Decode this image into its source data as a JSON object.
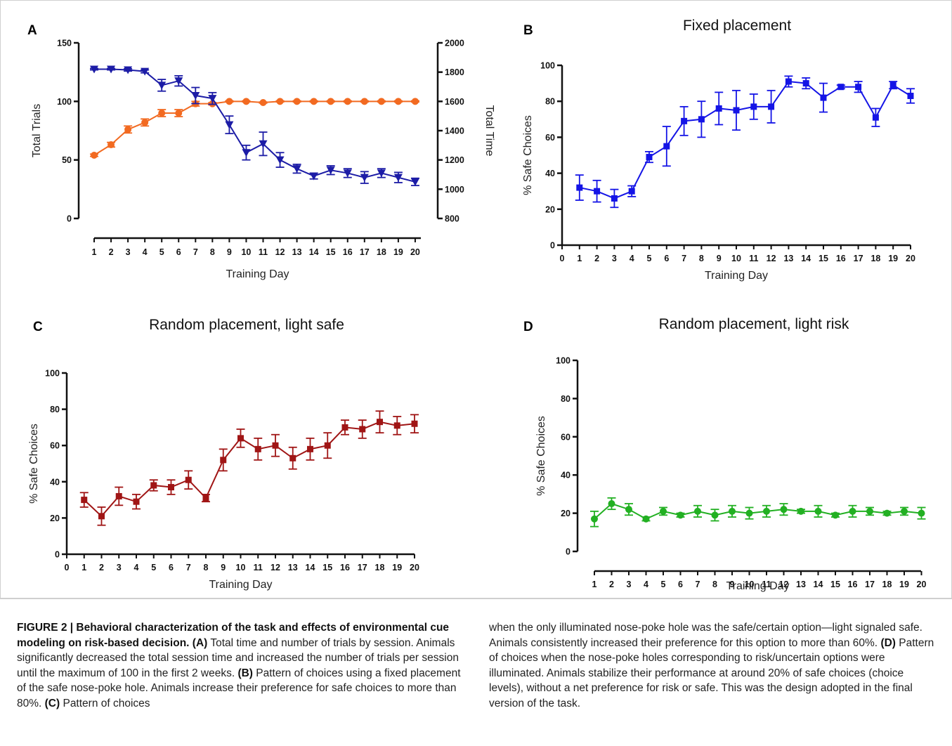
{
  "chart_data": [
    {
      "panel": "A",
      "type": "line",
      "title": "",
      "xlabel": "Training Day",
      "ylabel": "Total Trials",
      "y2label": "Total Time",
      "x": [
        1,
        2,
        3,
        4,
        5,
        6,
        7,
        8,
        9,
        10,
        11,
        12,
        13,
        14,
        15,
        16,
        17,
        18,
        19,
        20
      ],
      "xticks": [
        1,
        2,
        3,
        4,
        5,
        6,
        7,
        8,
        9,
        10,
        11,
        12,
        13,
        14,
        15,
        16,
        17,
        18,
        19,
        20
      ],
      "ylim": [
        0,
        150
      ],
      "yticks": [
        0,
        50,
        100,
        150
      ],
      "y2lim": [
        800,
        2000
      ],
      "y2ticks": [
        800,
        1000,
        1200,
        1400,
        1600,
        1800,
        2000
      ],
      "series": [
        {
          "name": "Total Trials",
          "axis": "left",
          "color": "#f26a21",
          "marker": "circle",
          "values": [
            54,
            63,
            76,
            82,
            90,
            90,
            98,
            98,
            100,
            100,
            99,
            100,
            100,
            100,
            100,
            100,
            100,
            100,
            100,
            100
          ],
          "errors": [
            1,
            2,
            3,
            3,
            3,
            3,
            2,
            1,
            0.5,
            0.5,
            0.5,
            0.5,
            0.5,
            0.5,
            0.5,
            0.5,
            0.5,
            0.5,
            0.5,
            0.5
          ]
        },
        {
          "name": "Total Time",
          "axis": "right",
          "color": "#1c1ca6",
          "marker": "triangle-down",
          "values": [
            1820,
            1820,
            1815,
            1805,
            1710,
            1740,
            1640,
            1620,
            1440,
            1250,
            1310,
            1200,
            1140,
            1090,
            1130,
            1110,
            1080,
            1110,
            1080,
            1050
          ],
          "errors": [
            5,
            5,
            8,
            10,
            40,
            35,
            55,
            40,
            60,
            50,
            80,
            50,
            30,
            20,
            30,
            30,
            40,
            30,
            35,
            25
          ]
        }
      ]
    },
    {
      "panel": "B",
      "type": "line",
      "title": "Fixed placement",
      "xlabel": "Training Day",
      "ylabel": "% Safe Choices",
      "x": [
        1,
        2,
        3,
        4,
        5,
        6,
        7,
        8,
        9,
        10,
        11,
        12,
        13,
        14,
        15,
        16,
        17,
        18,
        19,
        20
      ],
      "xticks": [
        0,
        1,
        2,
        3,
        4,
        5,
        6,
        7,
        8,
        9,
        10,
        11,
        12,
        13,
        14,
        15,
        16,
        17,
        18,
        19,
        20
      ],
      "xlim": [
        0,
        20
      ],
      "ylim": [
        0,
        100
      ],
      "yticks": [
        0,
        20,
        40,
        60,
        80,
        100
      ],
      "series": [
        {
          "color": "#1414e6",
          "marker": "square",
          "values": [
            32,
            30,
            26,
            30,
            49,
            55,
            69,
            70,
            76,
            75,
            77,
            77,
            91,
            90,
            82,
            88,
            88,
            71,
            89,
            83
          ],
          "errors": [
            7,
            6,
            5,
            3,
            3,
            11,
            8,
            10,
            9,
            11,
            7,
            9,
            3,
            3,
            8,
            1,
            3,
            5,
            2,
            4
          ]
        }
      ]
    },
    {
      "panel": "C",
      "type": "line",
      "title": "Random placement, light safe",
      "xlabel": "Training Day",
      "ylabel": "% Safe Choices",
      "x": [
        1,
        2,
        3,
        4,
        5,
        6,
        7,
        8,
        9,
        10,
        11,
        12,
        13,
        14,
        15,
        16,
        17,
        18,
        19,
        20
      ],
      "xticks": [
        0,
        1,
        2,
        3,
        4,
        5,
        6,
        7,
        8,
        9,
        10,
        11,
        12,
        13,
        14,
        15,
        16,
        17,
        18,
        19,
        20
      ],
      "xlim": [
        0,
        20
      ],
      "ylim": [
        0,
        100
      ],
      "yticks": [
        0,
        20,
        40,
        60,
        80,
        100
      ],
      "series": [
        {
          "color": "#a01515",
          "marker": "square",
          "values": [
            30,
            21,
            32,
            29,
            38,
            37,
            41,
            31,
            52,
            64,
            58,
            60,
            53,
            58,
            60,
            70,
            69,
            73,
            71,
            72
          ],
          "errors": [
            4,
            5,
            5,
            4,
            3,
            4,
            5,
            2,
            6,
            5,
            6,
            6,
            6,
            6,
            7,
            4,
            5,
            6,
            5,
            5
          ]
        }
      ]
    },
    {
      "panel": "D",
      "type": "line",
      "title": "Random placement, light risk",
      "xlabel": "Training Day",
      "ylabel": "% Safe Choices",
      "x": [
        1,
        2,
        3,
        4,
        5,
        6,
        7,
        8,
        9,
        10,
        11,
        12,
        13,
        14,
        15,
        16,
        17,
        18,
        19,
        20
      ],
      "xticks": [
        1,
        2,
        3,
        4,
        5,
        6,
        7,
        8,
        9,
        10,
        11,
        12,
        13,
        14,
        15,
        16,
        17,
        18,
        19,
        20
      ],
      "ylim": [
        0,
        100
      ],
      "yticks": [
        0,
        20,
        40,
        60,
        80,
        100
      ],
      "series": [
        {
          "color": "#22b022",
          "marker": "circle",
          "values": [
            17,
            25,
            22,
            17,
            21,
            19,
            21,
            19,
            21,
            20,
            21,
            22,
            21,
            21,
            19,
            21,
            21,
            20,
            21,
            20
          ],
          "errors": [
            4,
            3,
            3,
            1,
            2,
            1,
            3,
            3,
            3,
            3,
            3,
            3,
            1,
            3,
            1,
            3,
            2,
            1,
            2,
            3
          ]
        }
      ]
    }
  ],
  "caption": {
    "left": [
      {
        "b": true,
        "t": "FIGURE 2 | Behavioral characterization of the task and effects of environmental cue modeling on risk-based decision."
      },
      {
        "b": false,
        "t": " "
      },
      {
        "b": true,
        "t": "(A)"
      },
      {
        "b": false,
        "t": " Total time and number of trials by session. Animals significantly decreased the total session time and increased the number of trials per session until the maximum of 100 in the first 2 weeks. "
      },
      {
        "b": true,
        "t": "(B)"
      },
      {
        "b": false,
        "t": " Pattern of choices using a fixed placement of the safe nose-poke hole. Animals increase their preference for safe choices to more than 80%. "
      },
      {
        "b": true,
        "t": "(C)"
      },
      {
        "b": false,
        "t": " Pattern of choices"
      }
    ],
    "right": [
      {
        "b": false,
        "t": "when the only illuminated nose-poke hole was the safe/certain option—light signaled safe. Animals consistently increased their preference for this option to more than 60%. "
      },
      {
        "b": true,
        "t": "(D)"
      },
      {
        "b": false,
        "t": " Pattern of choices when the nose-poke holes corresponding to risk/uncertain options were illuminated. Animals stabilize their performance at around 20% of safe choices (choice levels), without a net preference for risk or safe. This was the design adopted in the final version of the task."
      }
    ]
  }
}
